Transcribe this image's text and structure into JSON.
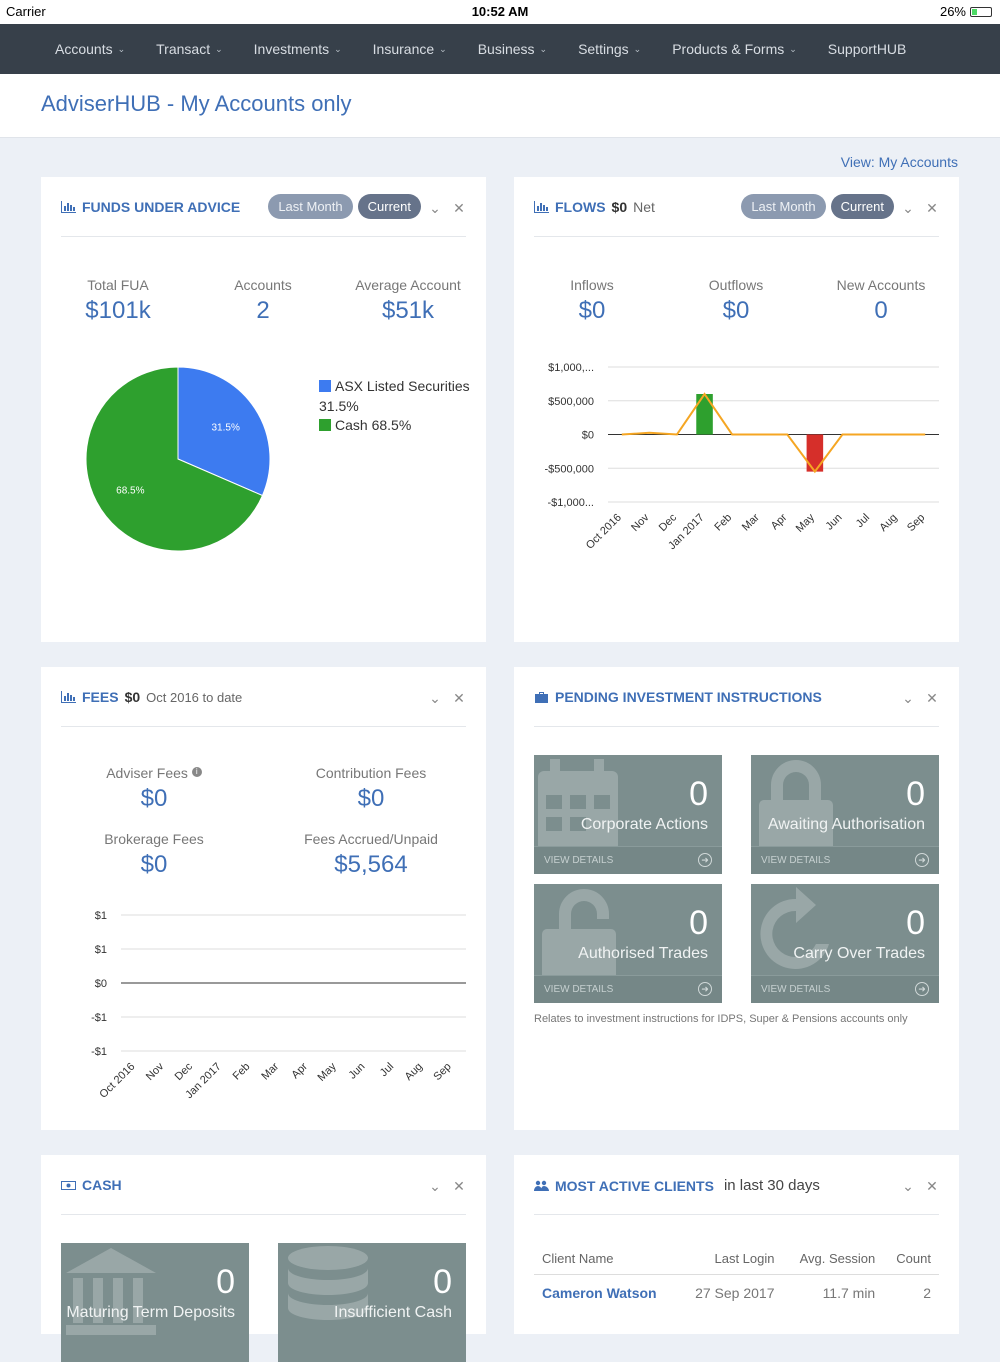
{
  "status_bar": {
    "carrier": "Carrier",
    "time": "10:52 AM",
    "battery": "26%"
  },
  "nav": {
    "items": [
      "Accounts",
      "Transact",
      "Investments",
      "Insurance",
      "Business",
      "Settings",
      "Products & Forms",
      "SupportHUB"
    ]
  },
  "page": {
    "title": "AdviserHUB - My Accounts only",
    "view_link": "View: My Accounts"
  },
  "fua": {
    "title": "FUNDS UNDER ADVICE",
    "last_month": "Last Month",
    "current": "Current",
    "total_label": "Total FUA",
    "total_value": "$101k",
    "accounts_label": "Accounts",
    "accounts_value": "2",
    "avg_label": "Average Account",
    "avg_value": "$51k",
    "legend_asx": "ASX Listed Securities",
    "legend_asx_pct": "31.5%",
    "legend_cash": "Cash 68.5%",
    "slice_asx_label": "31.5%",
    "slice_cash_label": "68.5%"
  },
  "flows": {
    "title": "FLOWS",
    "net_value": "$0",
    "net_label": "Net",
    "last_month": "Last Month",
    "current": "Current",
    "inflows_label": "Inflows",
    "inflows_value": "$0",
    "outflows_label": "Outflows",
    "outflows_value": "$0",
    "new_label": "New Accounts",
    "new_value": "0",
    "y_ticks": [
      "$1,000,...",
      "$500,000",
      "$0",
      "-$500,000",
      "-$1,000..."
    ]
  },
  "fees": {
    "title": "FEES",
    "amount": "$0",
    "period": "Oct 2016 to date",
    "adviser_label": "Adviser Fees",
    "adviser_value": "$0",
    "contribution_label": "Contribution Fees",
    "contribution_value": "$0",
    "brokerage_label": "Brokerage Fees",
    "brokerage_value": "$0",
    "accrued_label": "Fees Accrued/Unpaid",
    "accrued_value": "$5,564",
    "y_ticks": [
      "$1",
      "$1",
      "$0",
      "-$1",
      "-$1"
    ]
  },
  "pending": {
    "title": "PENDING INVESTMENT INSTRUCTIONS",
    "tiles": [
      {
        "num": "0",
        "label": "Corporate Actions",
        "foot": "VIEW DETAILS"
      },
      {
        "num": "0",
        "label": "Awaiting Authorisation",
        "foot": "VIEW DETAILS"
      },
      {
        "num": "0",
        "label": "Authorised Trades",
        "foot": "VIEW DETAILS"
      },
      {
        "num": "0",
        "label": "Carry Over Trades",
        "foot": "VIEW DETAILS"
      }
    ],
    "note": "Relates to investment instructions for IDPS, Super & Pensions accounts only"
  },
  "cash": {
    "title": "CASH",
    "tiles": [
      {
        "num": "0",
        "label": "Maturing Term Deposits"
      },
      {
        "num": "0",
        "label": "Insufficient Cash"
      }
    ]
  },
  "clients": {
    "title": "MOST ACTIVE CLIENTS",
    "subtitle": "in last 30 days",
    "headers": [
      "Client Name",
      "Last Login",
      "Avg. Session",
      "Count"
    ],
    "rows": [
      {
        "name": "Cameron Watson",
        "last_login": "27 Sep 2017",
        "avg_session": "11.7 min",
        "count": "2"
      }
    ]
  },
  "chart_data": [
    {
      "type": "pie",
      "categories": [
        "ASX Listed Securities",
        "Cash"
      ],
      "values": [
        31.5,
        68.5
      ],
      "colors": [
        "#3d7bf0",
        "#2ea02e"
      ]
    },
    {
      "type": "bar",
      "categories": [
        "Oct 2016",
        "Nov",
        "Dec",
        "Jan 2017",
        "Feb",
        "Mar",
        "Apr",
        "May",
        "Jun",
        "Jul",
        "Aug",
        "Sep"
      ],
      "series": [
        {
          "values": [
            0,
            0,
            0,
            600000,
            0,
            0,
            0,
            -550000,
            0,
            0,
            0,
            0
          ]
        }
      ],
      "line": [
        0,
        25000,
        0,
        600000,
        0,
        0,
        0,
        -550000,
        0,
        0,
        0,
        0
      ],
      "ylim": [
        -1000000,
        1000000
      ],
      "colors": {
        "positive": "#2ea02e",
        "negative": "#d62f2a",
        "line": "#f5a623"
      }
    },
    {
      "type": "line",
      "categories": [
        "Oct 2016",
        "Nov",
        "Dec",
        "Jan 2017",
        "Feb",
        "Mar",
        "Apr",
        "May",
        "Jun",
        "Jul",
        "Aug",
        "Sep"
      ],
      "series": [
        {
          "values": [
            0,
            0,
            0,
            0,
            0,
            0,
            0,
            0,
            0,
            0,
            0,
            0
          ]
        }
      ]
    }
  ]
}
